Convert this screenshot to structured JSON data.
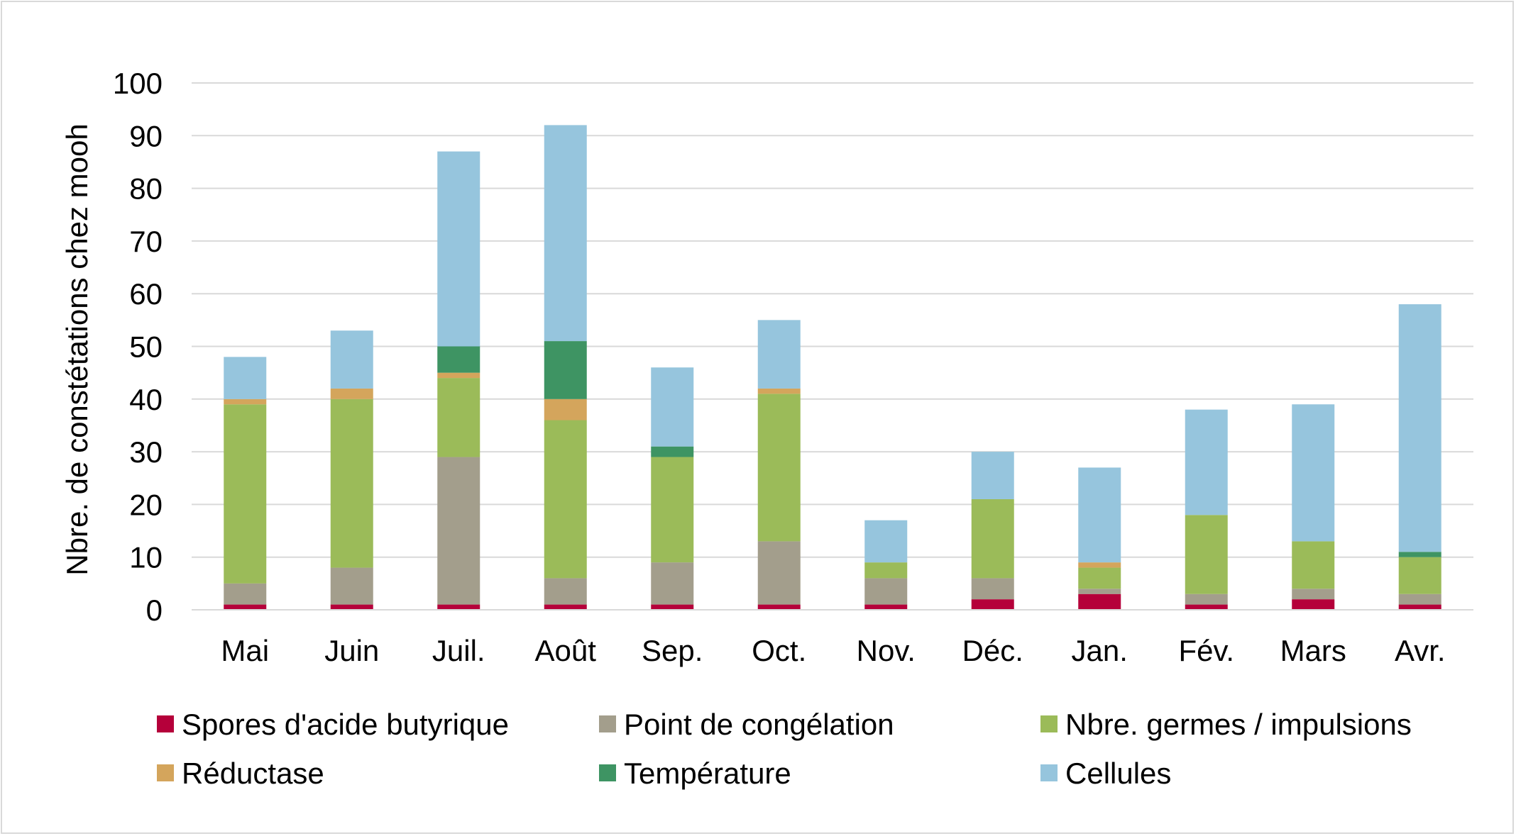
{
  "chart_data": {
    "type": "bar",
    "stacked": true,
    "title": "",
    "xlabel": "",
    "ylabel": "Nbre. de constétations chez mooh",
    "ylim": [
      0,
      100
    ],
    "yticks": [
      "0",
      "10",
      "20",
      "30",
      "40",
      "50",
      "60",
      "70",
      "80",
      "90",
      "100"
    ],
    "grid": true,
    "legend_position": "bottom",
    "categories": [
      "Mai",
      "Juin",
      "Juil.",
      "Août",
      "Sep.",
      "Oct.",
      "Nov.",
      "Déc.",
      "Jan.",
      "Fév.",
      "Mars",
      "Avr."
    ],
    "series": [
      {
        "name": "Spores d'acide butyrique",
        "color": "#b5003a",
        "values": [
          1,
          1,
          1,
          1,
          1,
          1,
          1,
          2,
          3,
          1,
          2,
          1
        ]
      },
      {
        "name": "Point de congélation",
        "color": "#a39e8c",
        "values": [
          4,
          7,
          28,
          5,
          8,
          12,
          5,
          4,
          1,
          2,
          2,
          2
        ]
      },
      {
        "name": "Nbre. germes / impulsions",
        "color": "#9bbb59",
        "values": [
          34,
          32,
          15,
          30,
          20,
          28,
          3,
          15,
          4,
          15,
          9,
          7
        ]
      },
      {
        "name": "Réductase",
        "color": "#d4a55c",
        "values": [
          1,
          2,
          1,
          4,
          0,
          1,
          0,
          0,
          1,
          0,
          0,
          0
        ]
      },
      {
        "name": "Température",
        "color": "#3e9463",
        "values": [
          0,
          0,
          5,
          11,
          2,
          0,
          0,
          0,
          0,
          0,
          0,
          1
        ]
      },
      {
        "name": "Cellules",
        "color": "#96c5dd",
        "values": [
          8,
          11,
          37,
          41,
          15,
          13,
          8,
          9,
          18,
          20,
          26,
          47
        ]
      }
    ]
  }
}
